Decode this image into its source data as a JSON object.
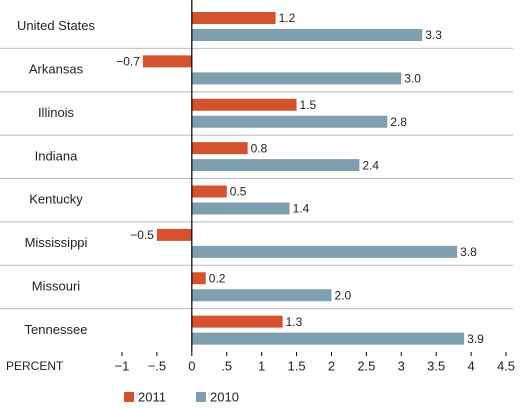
{
  "chart_data": {
    "type": "bar",
    "orientation": "horizontal",
    "categories": [
      "United States",
      "Arkansas",
      "Illinois",
      "Indiana",
      "Kentucky",
      "Mississippi",
      "Missouri",
      "Tennessee"
    ],
    "series": [
      {
        "name": "2011",
        "color": "#d4532e",
        "values": [
          1.2,
          -0.7,
          1.5,
          0.8,
          0.5,
          -0.5,
          0.2,
          1.3
        ],
        "value_labels": [
          "1.2",
          "−0.7",
          "1.5",
          "0.8",
          "0.5",
          "−0.5",
          "0.2",
          "1.3"
        ]
      },
      {
        "name": "2010",
        "color": "#7f9fae",
        "values": [
          3.3,
          3.0,
          2.8,
          2.4,
          1.4,
          3.8,
          2.0,
          3.9
        ],
        "value_labels": [
          "3.3",
          "3.0",
          "2.8",
          "2.4",
          "1.4",
          "3.8",
          "2.0",
          "3.9"
        ]
      }
    ],
    "xlabel": "PERCENT",
    "xlim": [
      -1,
      4.5
    ],
    "xticks": [
      {
        "value": -1,
        "label": "−1"
      },
      {
        "value": -0.5,
        "label": "−.5"
      },
      0,
      {
        "value": 0.5,
        "label": ".5"
      },
      1,
      1.5,
      2,
      2.5,
      3,
      3.5,
      4,
      4.5
    ],
    "legend": "bottom"
  }
}
